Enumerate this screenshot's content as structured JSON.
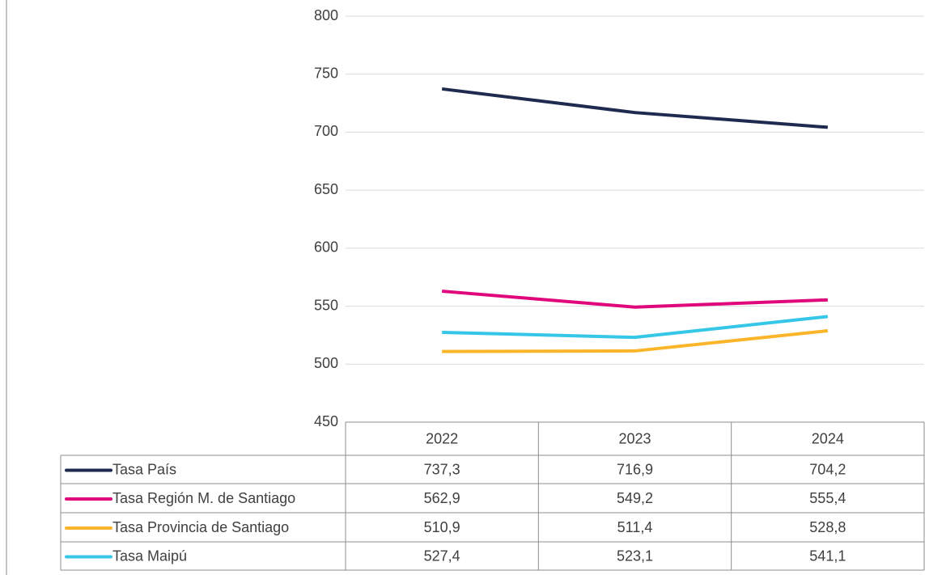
{
  "chart_data": {
    "type": "line",
    "categories": [
      "2022",
      "2023",
      "2024"
    ],
    "series": [
      {
        "name": "Tasa País",
        "color": "#1f2a4f",
        "values": [
          737.3,
          716.9,
          704.2
        ],
        "value_labels": [
          "737,3",
          "716,9",
          "704,2"
        ]
      },
      {
        "name": "Tasa Región M. de Santiago",
        "color": "#e0077d",
        "values": [
          562.9,
          549.2,
          555.4
        ],
        "value_labels": [
          "562,9",
          "549,2",
          "555,4"
        ]
      },
      {
        "name": "Tasa Provincia de Santiago",
        "color": "#fbb52a",
        "values": [
          510.9,
          511.4,
          528.8
        ],
        "value_labels": [
          "510,9",
          "511,4",
          "528,8"
        ]
      },
      {
        "name": "Tasa Maipú",
        "color": "#35c6e8",
        "values": [
          527.4,
          523.1,
          541.1
        ],
        "value_labels": [
          "527,4",
          "523,1",
          "541,1"
        ]
      }
    ],
    "ylim": [
      450,
      800
    ],
    "yticks": [
      450,
      500,
      550,
      600,
      650,
      700,
      750,
      800
    ],
    "grid": true
  }
}
